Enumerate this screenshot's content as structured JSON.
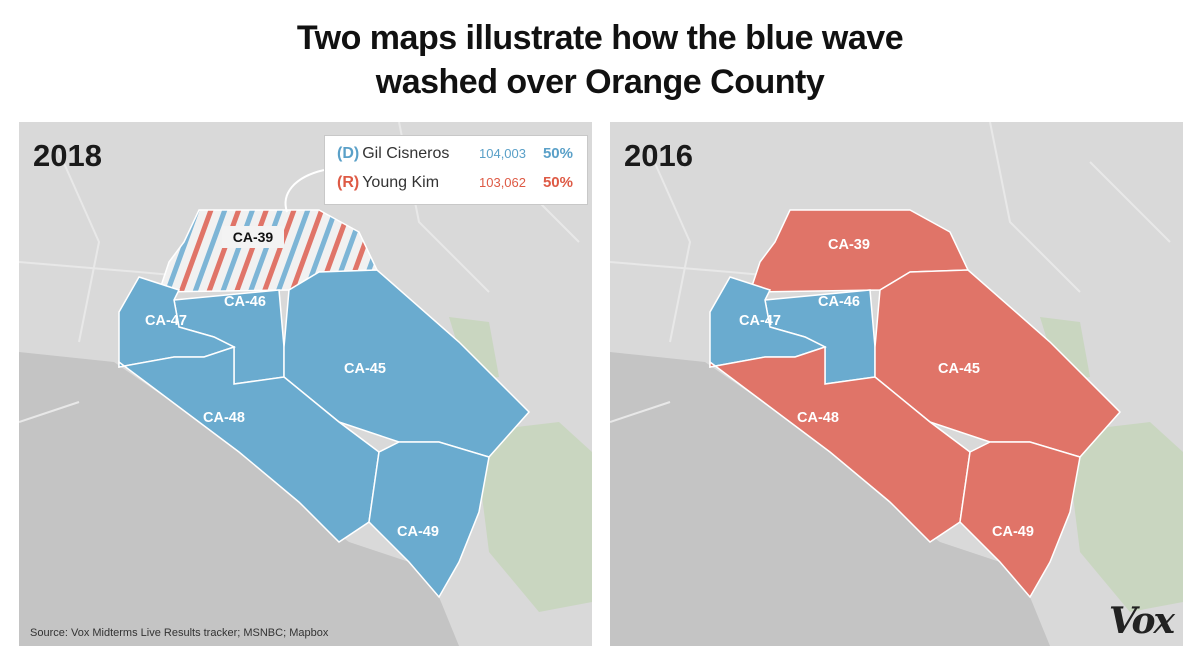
{
  "title": {
    "line1": "Two maps illustrate how the blue wave",
    "line2": "washed over Orange County"
  },
  "colors": {
    "democrat": "#6aabcf",
    "republican": "#e07468",
    "land": "#d9d9d9",
    "ocean": "#c4c4c4",
    "park": "#c9d6c0"
  },
  "maps": [
    {
      "year": "2018",
      "districts": [
        {
          "id": "CA-39",
          "label": "CA-39",
          "winner": "contested"
        },
        {
          "id": "CA-45",
          "label": "CA-45",
          "winner": "democrat"
        },
        {
          "id": "CA-46",
          "label": "CA-46",
          "winner": "democrat"
        },
        {
          "id": "CA-47",
          "label": "CA-47",
          "winner": "democrat"
        },
        {
          "id": "CA-48",
          "label": "CA-48",
          "winner": "democrat"
        },
        {
          "id": "CA-49",
          "label": "CA-49",
          "winner": "democrat"
        }
      ],
      "legend": {
        "rows": [
          {
            "party": "(D)",
            "name": "Gil Cisneros",
            "votes": "104,003",
            "pct": "50%"
          },
          {
            "party": "(R)",
            "name": "Young Kim",
            "votes": "103,062",
            "pct": "50%"
          }
        ]
      }
    },
    {
      "year": "2016",
      "districts": [
        {
          "id": "CA-39",
          "label": "CA-39",
          "winner": "republican"
        },
        {
          "id": "CA-45",
          "label": "CA-45",
          "winner": "republican"
        },
        {
          "id": "CA-46",
          "label": "CA-46",
          "winner": "democrat"
        },
        {
          "id": "CA-47",
          "label": "CA-47",
          "winner": "democrat"
        },
        {
          "id": "CA-48",
          "label": "CA-48",
          "winner": "republican"
        },
        {
          "id": "CA-49",
          "label": "CA-49",
          "winner": "republican"
        }
      ]
    }
  ],
  "source": "Source: Vox Midterms Live Results tracker; MSNBC; Mapbox",
  "logo": "Vox"
}
